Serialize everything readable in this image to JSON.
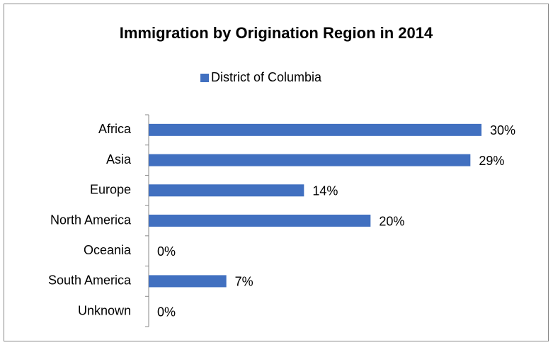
{
  "chart_data": {
    "type": "bar",
    "orientation": "horizontal",
    "title": "Immigration by Origination Region in 2014",
    "categories": [
      "Africa",
      "Asia",
      "Europe",
      "North America",
      "Oceania",
      "South America",
      "Unknown"
    ],
    "series": [
      {
        "name": "District of Columbia",
        "color": "#4170c0",
        "values": [
          30,
          29,
          14,
          20,
          0,
          7,
          0
        ],
        "value_labels": [
          "30%",
          "29%",
          "14%",
          "20%",
          "0%",
          "7%",
          "0%"
        ]
      }
    ],
    "legend": "top"
  }
}
